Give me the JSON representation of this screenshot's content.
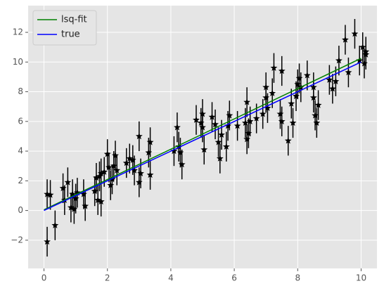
{
  "chart_data": {
    "type": "scatter",
    "xlim": [
      -0.5,
      10.5
    ],
    "ylim": [
      -3.9,
      13.8
    ],
    "xticks": [
      0,
      2,
      4,
      6,
      8,
      10
    ],
    "yticks": [
      {
        "value": -2,
        "label": "−2"
      },
      0,
      2,
      4,
      6,
      8,
      10,
      12
    ],
    "grid": true,
    "legend": "upper-left",
    "points": {
      "color": "#000000",
      "x": [
        0.1,
        0.1,
        0.2,
        0.35,
        0.6,
        0.65,
        0.75,
        0.85,
        0.9,
        0.95,
        1.0,
        1.05,
        1.25,
        1.3,
        1.6,
        1.65,
        1.7,
        1.75,
        1.8,
        1.8,
        1.9,
        2.0,
        2.05,
        2.1,
        2.15,
        2.2,
        2.25,
        2.3,
        2.6,
        2.7,
        2.8,
        2.85,
        3.0,
        3.0,
        3.05,
        3.3,
        3.35,
        3.35,
        4.1,
        4.2,
        4.25,
        4.3,
        4.35,
        4.8,
        4.95,
        5.0,
        5.0,
        5.05,
        5.3,
        5.4,
        5.5,
        5.55,
        5.6,
        5.75,
        5.8,
        5.85,
        6.1,
        6.35,
        6.4,
        6.4,
        6.45,
        6.5,
        6.7,
        6.9,
        7.0,
        7.0,
        7.05,
        7.2,
        7.25,
        7.45,
        7.5,
        7.5,
        7.7,
        7.8,
        7.85,
        7.95,
        8.0,
        8.05,
        8.1,
        8.3,
        8.5,
        8.5,
        8.55,
        8.6,
        8.65,
        9.0,
        9.1,
        9.2,
        9.3,
        9.5,
        9.6,
        9.8,
        9.95,
        10.05,
        10.15,
        10.15,
        10.1
      ],
      "y": [
        1.1,
        -2.1,
        1.05,
        -1.0,
        1.5,
        0.7,
        1.9,
        0.2,
        1.1,
        0.1,
        0.8,
        1.2,
        1.1,
        0.3,
        1.3,
        2.2,
        0.7,
        2.3,
        0.6,
        2.5,
        2.6,
        3.8,
        2.9,
        1.7,
        2.1,
        3.0,
        3.7,
        2.7,
        3.2,
        3.5,
        3.4,
        2.7,
        5.0,
        1.9,
        2.5,
        3.9,
        4.6,
        2.4,
        4.0,
        5.6,
        4.3,
        3.9,
        3.1,
        6.1,
        5.9,
        6.5,
        5.6,
        4.1,
        6.3,
        5.8,
        4.6,
        3.5,
        5.1,
        4.3,
        5.7,
        6.4,
        5.7,
        5.9,
        4.8,
        7.3,
        5.2,
        6.0,
        6.2,
        6.5,
        7.6,
        8.3,
        6.9,
        7.9,
        9.6,
        6.5,
        9.4,
        6.0,
        4.7,
        7.2,
        5.9,
        7.7,
        8.5,
        8.9,
        8.3,
        9.1,
        7.6,
        8.3,
        6.4,
        5.9,
        7.1,
        8.8,
        8.2,
        8.7,
        10.1,
        11.5,
        9.3,
        11.9,
        10.1,
        11.0,
        10.5,
        10.7,
        9.9
      ],
      "yerr": [
        1,
        1,
        1,
        1,
        1,
        1,
        1,
        1,
        1,
        1,
        1,
        1,
        1,
        1,
        1,
        1,
        1,
        1,
        1,
        1,
        1,
        1,
        1,
        1,
        1,
        1,
        1,
        1,
        1,
        1,
        1,
        1,
        1,
        1,
        1,
        1,
        1,
        1,
        1,
        1,
        1,
        1,
        1,
        1,
        1,
        1,
        1,
        1,
        1,
        1,
        1,
        1,
        1,
        1,
        1,
        1,
        1,
        1,
        1,
        1,
        1,
        1,
        1,
        1,
        1,
        1,
        1,
        1,
        1,
        1,
        1,
        1,
        1,
        1,
        1,
        1,
        1,
        1,
        1,
        1,
        1,
        1,
        1,
        1,
        1,
        1,
        1,
        1,
        1,
        1,
        1,
        1,
        1,
        1,
        1,
        1,
        1
      ]
    },
    "series": [
      {
        "name": "lsq-fit",
        "color": "#008000",
        "x": [
          0,
          10
        ],
        "values": [
          0.05,
          10.25
        ]
      },
      {
        "name": "true",
        "color": "#0000ff",
        "x": [
          0,
          10
        ],
        "values": [
          0,
          10
        ]
      }
    ]
  }
}
